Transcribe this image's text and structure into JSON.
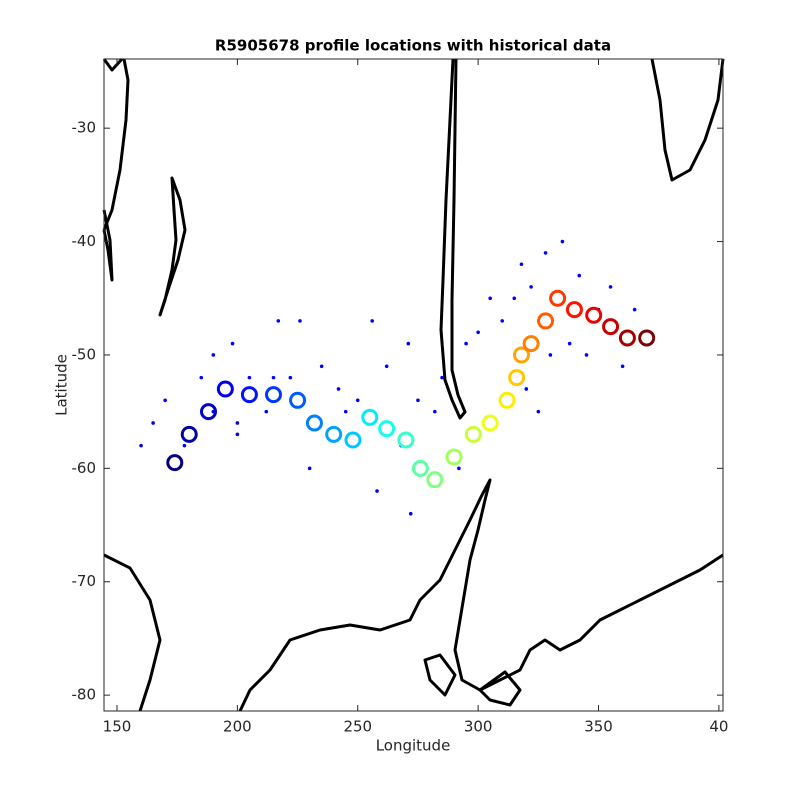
{
  "chart_data": {
    "type": "scatter",
    "title": "R5905678 profile locations with historical data",
    "xlabel": "Longitude",
    "ylabel": "Latitude",
    "xlim": [
      144.6,
      401.7
    ],
    "ylim": [
      -81.4,
      -23.9
    ],
    "xticks": [
      150,
      200,
      250,
      300,
      350,
      {
        "value": 400,
        "label": "40"
      }
    ],
    "yticks": [
      -80,
      -70,
      -60,
      -50,
      -40,
      -30
    ],
    "series": [
      {
        "color": "#0000ff",
        "x": [
          160,
          165,
          170,
          178,
          185,
          190,
          190,
          198,
          200,
          205,
          212,
          217,
          222,
          226,
          230,
          235,
          242,
          250,
          256,
          258,
          262,
          268,
          271,
          272,
          275,
          282,
          285,
          292,
          295,
          300,
          305,
          310,
          315,
          318,
          320,
          322,
          325,
          328,
          330,
          335,
          338,
          342,
          345,
          350,
          355,
          360,
          365,
          200,
          215,
          245
        ],
        "values": [
          -58,
          -56,
          -54,
          -58,
          -52,
          -55,
          -50,
          -49,
          -56,
          -52,
          -55,
          -47,
          -52,
          -47,
          -60,
          -51,
          -53,
          -54,
          -47,
          -62,
          -51,
          -58,
          -49,
          -64,
          -54,
          -55,
          -52,
          -60,
          -49,
          -48,
          -45,
          -47,
          -45,
          -42,
          -53,
          -44,
          -55,
          -41,
          -50,
          -40,
          -49,
          -43,
          -50,
          -46,
          -44,
          -51,
          -46,
          -57,
          -52,
          -55
        ]
      },
      {
        "colormap": "jet",
        "x": [
          174,
          180,
          188,
          195,
          205,
          215,
          225,
          232,
          240,
          248,
          255,
          262,
          270,
          276,
          282,
          290,
          298,
          305,
          312,
          316,
          318,
          322,
          328,
          333,
          340,
          348,
          355,
          362,
          370
        ],
        "values": [
          -59.5,
          -57,
          -55,
          -53,
          -53.5,
          -53.5,
          -54,
          -56,
          -57,
          -57.5,
          -55.5,
          -56.5,
          -57.5,
          -60,
          -61,
          -59,
          -57,
          -56,
          -54,
          -52,
          -50,
          -49,
          -47,
          -45,
          -46,
          -46.5,
          -47.5,
          -48.5,
          -48.5
        ]
      }
    ]
  }
}
